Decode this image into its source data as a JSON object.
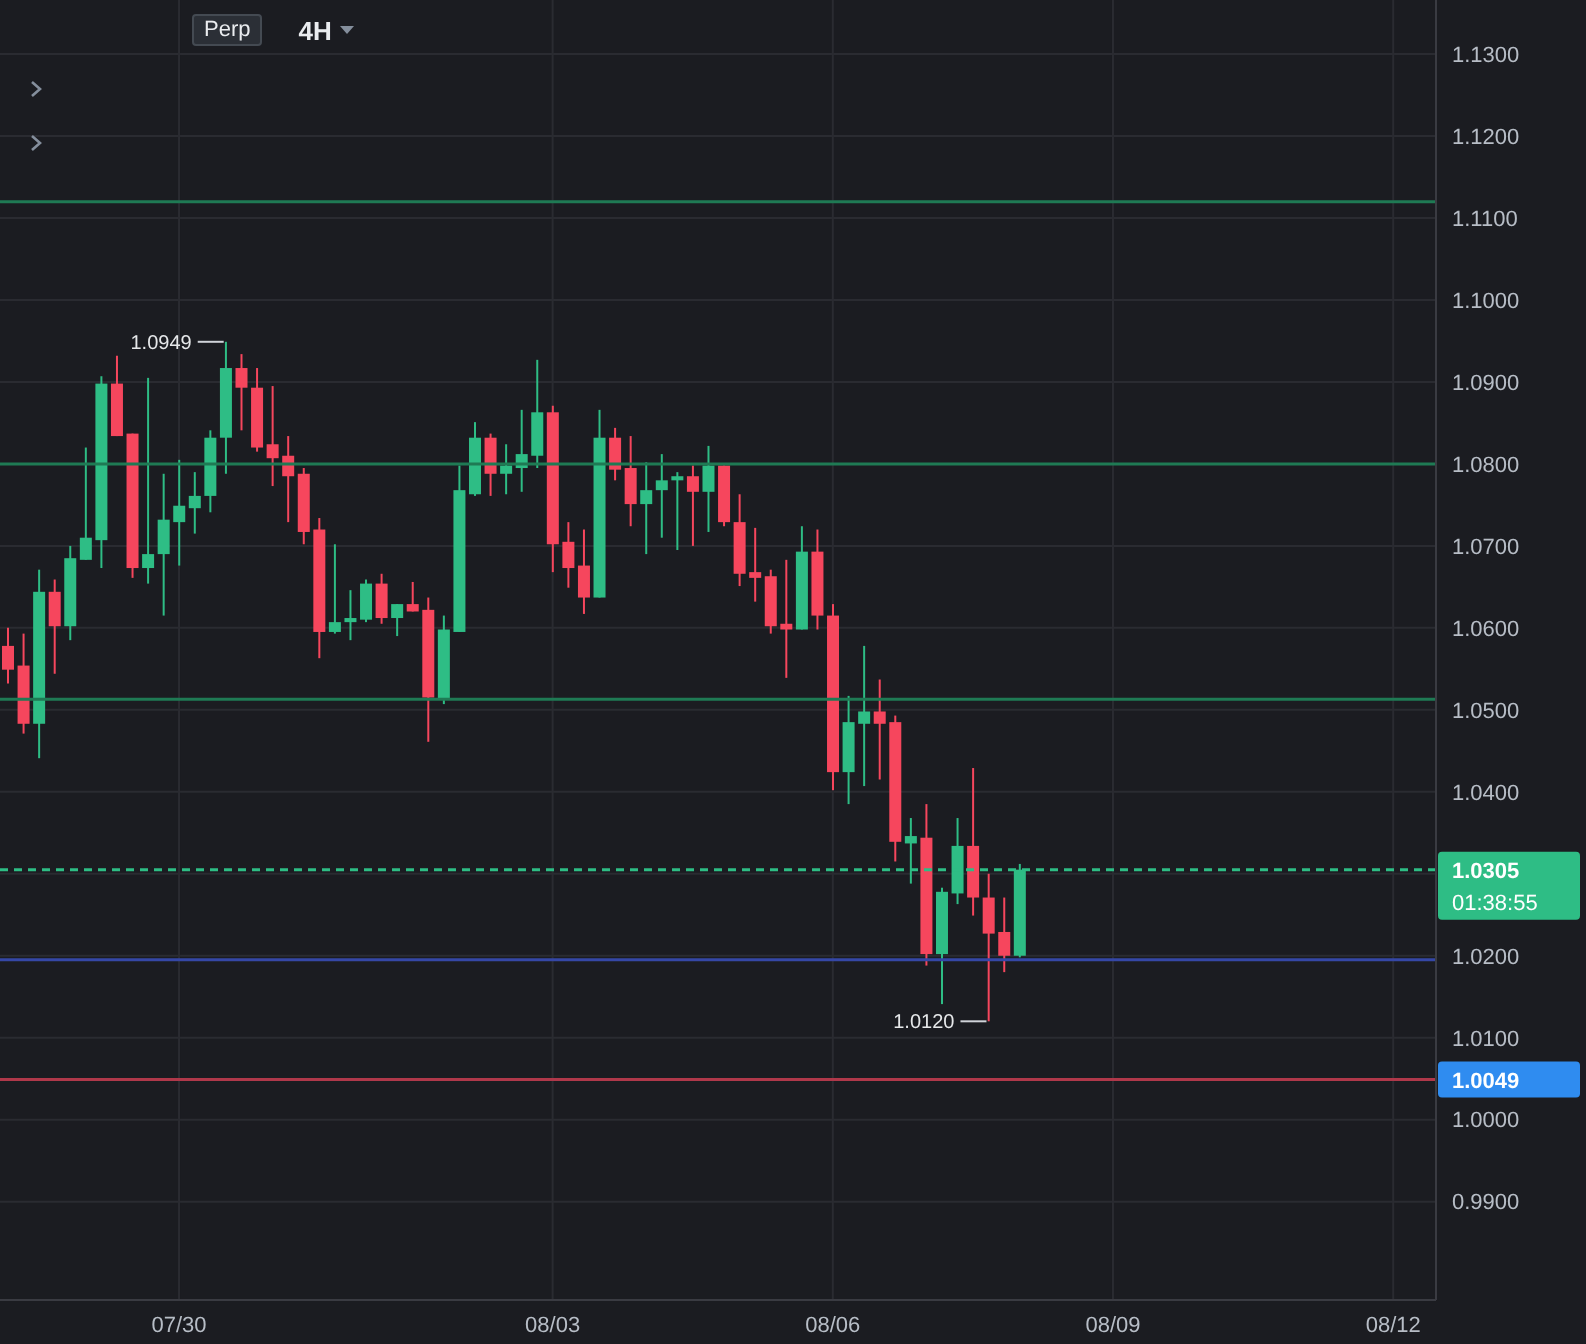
{
  "chart_data": {
    "type": "candlestick",
    "x": [
      "--07-28T04:00",
      "--07-28T08:00",
      "--07-28T12:00",
      "--07-28T16:00",
      "--07-28T20:00",
      "--07-29T00:00",
      "--07-29T04:00",
      "--07-29T08:00",
      "--07-29T12:00",
      "--07-29T16:00",
      "--07-29T20:00",
      "--07-30T00:00",
      "--07-30T04:00",
      "--07-30T08:00",
      "--07-30T12:00",
      "--07-30T16:00",
      "--07-30T20:00",
      "--07-31T00:00",
      "--07-31T04:00",
      "--07-31T08:00",
      "--07-31T12:00",
      "--07-31T16:00",
      "--07-31T20:00",
      "--08-01T00:00",
      "--08-01T04:00",
      "--08-01T08:00",
      "--08-01T12:00",
      "--08-01T16:00",
      "--08-01T20:00",
      "--08-02T00:00",
      "--08-02T04:00",
      "--08-02T08:00",
      "--08-02T12:00",
      "--08-02T16:00",
      "--08-02T20:00",
      "--08-03T00:00",
      "--08-03T04:00",
      "--08-03T08:00",
      "--08-03T12:00",
      "--08-03T16:00",
      "--08-03T20:00",
      "--08-04T00:00",
      "--08-04T04:00",
      "--08-04T08:00",
      "--08-04T12:00",
      "--08-04T16:00",
      "--08-04T20:00",
      "--08-05T00:00",
      "--08-05T04:00",
      "--08-05T08:00",
      "--08-05T12:00",
      "--08-05T16:00",
      "--08-05T20:00",
      "--08-06T00:00",
      "--08-06T04:00",
      "--08-06T08:00",
      "--08-06T12:00",
      "--08-06T16:00",
      "--08-06T20:00",
      "--08-07T00:00",
      "--08-07T04:00",
      "--08-07T08:00",
      "--08-07T12:00",
      "--08-07T16:00",
      "--08-07T20:00",
      "--08-08T00:00"
    ],
    "ohlc": [
      [
        1.0578,
        1.06,
        1.0532,
        1.0549
      ],
      [
        1.0554,
        1.0593,
        1.0471,
        1.0483
      ],
      [
        1.0483,
        1.0671,
        1.0441,
        1.0644
      ],
      [
        1.0644,
        1.0659,
        1.0544,
        1.0602
      ],
      [
        1.0602,
        1.07,
        1.0585,
        1.0685
      ],
      [
        1.0683,
        1.082,
        1.0683,
        1.071
      ],
      [
        1.0707,
        1.0907,
        1.0673,
        1.0898
      ],
      [
        1.0898,
        1.0932,
        1.0834,
        1.0834
      ],
      [
        1.0837,
        1.0837,
        1.0661,
        1.0673
      ],
      [
        1.0673,
        1.0905,
        1.0654,
        1.069
      ],
      [
        1.069,
        1.0788,
        1.0615,
        1.0732
      ],
      [
        1.0729,
        1.0805,
        1.0676,
        1.0749
      ],
      [
        1.0746,
        1.079,
        1.0715,
        1.0761
      ],
      [
        1.0761,
        1.0841,
        1.0741,
        1.0832
      ],
      [
        1.0832,
        1.0949,
        1.0788,
        1.0917
      ],
      [
        1.0917,
        1.0934,
        1.0841,
        1.0893
      ],
      [
        1.0893,
        1.0917,
        1.0815,
        1.082
      ],
      [
        1.0824,
        1.0895,
        1.0773,
        1.0807
      ],
      [
        1.081,
        1.0834,
        1.0729,
        1.0785
      ],
      [
        1.0788,
        1.0795,
        1.0702,
        1.0717
      ],
      [
        1.072,
        1.0734,
        1.0563,
        1.0595
      ],
      [
        1.0595,
        1.0702,
        1.0593,
        1.0607
      ],
      [
        1.0607,
        1.0646,
        1.0585,
        1.0612
      ],
      [
        1.061,
        1.0659,
        1.0607,
        1.0654
      ],
      [
        1.0654,
        1.0666,
        1.0605,
        1.0612
      ],
      [
        1.0612,
        1.0629,
        1.059,
        1.0629
      ],
      [
        1.0629,
        1.0656,
        1.062,
        1.062
      ],
      [
        1.0622,
        1.0637,
        1.0461,
        1.0515
      ],
      [
        1.0512,
        1.0615,
        1.0507,
        1.0598
      ],
      [
        1.0595,
        1.0798,
        1.0595,
        1.0768
      ],
      [
        1.0763,
        1.0851,
        1.0761,
        1.0832
      ],
      [
        1.0832,
        1.0837,
        1.0761,
        1.0788
      ],
      [
        1.0788,
        1.0824,
        1.0763,
        1.0798
      ],
      [
        1.0795,
        1.0866,
        1.0766,
        1.0812
      ],
      [
        1.081,
        1.0927,
        1.0795,
        1.0863
      ],
      [
        1.0863,
        1.0871,
        1.0668,
        1.0702
      ],
      [
        1.0705,
        1.0729,
        1.0649,
        1.0673
      ],
      [
        1.0676,
        1.072,
        1.0617,
        1.0637
      ],
      [
        1.0637,
        1.0866,
        1.0637,
        1.0832
      ],
      [
        1.0832,
        1.0844,
        1.078,
        1.0793
      ],
      [
        1.0795,
        1.0834,
        1.0724,
        1.0751
      ],
      [
        1.0751,
        1.0802,
        1.069,
        1.0768
      ],
      [
        1.0768,
        1.0812,
        1.071,
        1.078
      ],
      [
        1.078,
        1.079,
        1.0695,
        1.0785
      ],
      [
        1.0785,
        1.0798,
        1.07,
        1.0766
      ],
      [
        1.0766,
        1.0822,
        1.0717,
        1.0798
      ],
      [
        1.0798,
        1.0798,
        1.0724,
        1.0729
      ],
      [
        1.0729,
        1.0763,
        1.0651,
        1.0666
      ],
      [
        1.0668,
        1.0722,
        1.0632,
        1.0661
      ],
      [
        1.0663,
        1.0671,
        1.0593,
        1.0602
      ],
      [
        1.0605,
        1.0683,
        1.0539,
        1.0598
      ],
      [
        1.0598,
        1.0724,
        1.0598,
        1.0693
      ],
      [
        1.0693,
        1.072,
        1.0598,
        1.0615
      ],
      [
        1.0615,
        1.0629,
        1.0402,
        1.0424
      ],
      [
        1.0424,
        1.0517,
        1.0385,
        1.0485
      ],
      [
        1.0483,
        1.0578,
        1.0407,
        1.0498
      ],
      [
        1.0498,
        1.0537,
        1.0415,
        1.0483
      ],
      [
        1.0485,
        1.0493,
        1.0315,
        1.0339
      ],
      [
        1.0337,
        1.0368,
        1.0288,
        1.0346
      ],
      [
        1.0344,
        1.0385,
        1.0188,
        1.0202
      ],
      [
        1.0202,
        1.0283,
        1.0141,
        1.0278
      ],
      [
        1.0276,
        1.0368,
        1.0263,
        1.0334
      ],
      [
        1.0334,
        1.0429,
        1.0249,
        1.0271
      ],
      [
        1.0271,
        1.03,
        1.012,
        1.0227
      ],
      [
        1.0229,
        1.0271,
        1.018,
        1.02
      ],
      [
        1.02,
        1.0312,
        1.0198,
        1.0305
      ]
    ],
    "colors": [
      "#f6465d",
      "#f6465d",
      "#2ebd85",
      "#f6465d",
      "#2ebd85",
      "#2ebd85",
      "#2ebd85",
      "#f6465d",
      "#f6465d",
      "#2ebd85",
      "#2ebd85",
      "#2ebd85",
      "#2ebd85",
      "#2ebd85",
      "#2ebd85",
      "#f6465d",
      "#f6465d",
      "#f6465d",
      "#f6465d",
      "#f6465d",
      "#f6465d",
      "#2ebd85",
      "#2ebd85",
      "#2ebd85",
      "#f6465d",
      "#2ebd85",
      "#f6465d",
      "#f6465d",
      "#2ebd85",
      "#2ebd85",
      "#2ebd85",
      "#f6465d",
      "#2ebd85",
      "#2ebd85",
      "#2ebd85",
      "#f6465d",
      "#f6465d",
      "#f6465d",
      "#2ebd85",
      "#f6465d",
      "#f6465d",
      "#2ebd85",
      "#2ebd85",
      "#2ebd85",
      "#f6465d",
      "#2ebd85",
      "#f6465d",
      "#f6465d",
      "#f6465d",
      "#f6465d",
      "#f6465d",
      "#2ebd85",
      "#f6465d",
      "#f6465d",
      "#2ebd85",
      "#2ebd85",
      "#f6465d",
      "#f6465d",
      "#2ebd85",
      "#f6465d",
      "#2ebd85",
      "#2ebd85",
      "#f6465d",
      "#f6465d",
      "#f6465d",
      "#2ebd85"
    ],
    "xlim": [
      "--07-28T02:00",
      "--08-12T11:00"
    ],
    "xticks": [
      {
        "value": "--07-30",
        "label": "07/30"
      },
      {
        "value": "--08-03",
        "label": "08/03"
      },
      {
        "value": "--08-06",
        "label": "08/06"
      },
      {
        "value": "--08-09",
        "label": "08/09"
      },
      {
        "value": "--08-12",
        "label": "08/12"
      }
    ],
    "ylim": [
      0.978,
      1.1366
    ],
    "yticks": [
      {
        "value": 0.99,
        "label": "0.9900"
      },
      {
        "value": 1.0,
        "label": "1.0000"
      },
      {
        "value": 1.01,
        "label": "1.0100"
      },
      {
        "value": 1.02,
        "label": "1.0200"
      },
      {
        "value": 1.03,
        "label": null
      },
      {
        "value": 1.04,
        "label": "1.0400"
      },
      {
        "value": 1.05,
        "label": "1.0500"
      },
      {
        "value": 1.06,
        "label": "1.0600"
      },
      {
        "value": 1.07,
        "label": "1.0700"
      },
      {
        "value": 1.08,
        "label": "1.0800"
      },
      {
        "value": 1.09,
        "label": "1.0900"
      },
      {
        "value": 1.1,
        "label": "1.1000"
      },
      {
        "value": 1.11,
        "label": "1.1100"
      },
      {
        "value": 1.12,
        "label": "1.1200"
      },
      {
        "value": 1.13,
        "label": "1.1300"
      }
    ],
    "grid": true,
    "ref_lines": [
      {
        "axis": "y",
        "value": 1.112,
        "color": "#1f7a54"
      },
      {
        "axis": "y",
        "value": 1.08,
        "color": "#1f7a54"
      },
      {
        "axis": "y",
        "value": 1.0513,
        "color": "#1f7a54"
      },
      {
        "axis": "y",
        "value": 1.0195,
        "color": "#3547a6"
      },
      {
        "axis": "y",
        "value": 1.0049,
        "label": "1.0049",
        "color": "#b0384a"
      },
      {
        "axis": "y",
        "value": 1.0305,
        "label": "1.0305",
        "color": "#2ebd85",
        "line_style": "dashed"
      }
    ],
    "annotations": [
      "Perp",
      "4H",
      "01:38:55",
      {
        "text": "1.0949",
        "x": "--07-30T12:00",
        "y": 1.0949
      },
      {
        "text": "1.0120",
        "x": "--08-07T16:00",
        "y": 1.012
      }
    ]
  }
}
